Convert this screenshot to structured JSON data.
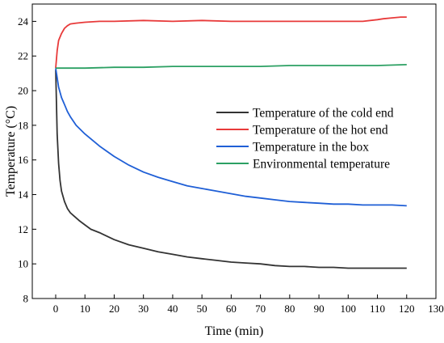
{
  "chart_data": {
    "type": "line",
    "xlabel": "Time (min)",
    "ylabel": "Temperature (°C)",
    "xlim": [
      -8,
      130
    ],
    "ylim": [
      8,
      25
    ],
    "xticks": [
      0,
      10,
      20,
      30,
      40,
      50,
      60,
      70,
      80,
      90,
      100,
      110,
      120,
      130
    ],
    "yticks": [
      8,
      10,
      12,
      14,
      16,
      18,
      20,
      22,
      24
    ],
    "grid": false,
    "legend_position": "center-right",
    "series": [
      {
        "name": "Temperature of the cold end",
        "color": "#333333",
        "x": [
          0,
          0.5,
          1,
          1.5,
          2,
          3,
          4,
          5,
          6,
          8,
          10,
          12,
          15,
          20,
          25,
          30,
          35,
          40,
          45,
          50,
          55,
          60,
          65,
          70,
          75,
          80,
          85,
          90,
          95,
          100,
          105,
          110,
          115,
          120
        ],
        "y": [
          21.2,
          17.5,
          15.8,
          14.8,
          14.2,
          13.6,
          13.2,
          12.95,
          12.8,
          12.5,
          12.25,
          12.0,
          11.8,
          11.4,
          11.1,
          10.9,
          10.7,
          10.55,
          10.4,
          10.3,
          10.2,
          10.1,
          10.05,
          10.0,
          9.9,
          9.85,
          9.85,
          9.8,
          9.8,
          9.75,
          9.75,
          9.75,
          9.75,
          9.75
        ]
      },
      {
        "name": "Temperature of the hot end",
        "color": "#e83a3a",
        "x": [
          0,
          0.5,
          1,
          2,
          3,
          4,
          5,
          7,
          10,
          15,
          20,
          30,
          40,
          50,
          60,
          70,
          80,
          90,
          100,
          105,
          110,
          112,
          115,
          118,
          120
        ],
        "y": [
          21.3,
          22.3,
          22.9,
          23.3,
          23.6,
          23.75,
          23.85,
          23.9,
          23.95,
          24.0,
          24.0,
          24.05,
          24.0,
          24.05,
          24.0,
          24.0,
          24.0,
          24.0,
          24.0,
          24.0,
          24.1,
          24.15,
          24.2,
          24.25,
          24.25
        ]
      },
      {
        "name": "Temperature in the box",
        "color": "#1f5fd6",
        "x": [
          0,
          1,
          2,
          3,
          4,
          5,
          7,
          10,
          15,
          20,
          25,
          30,
          35,
          40,
          45,
          50,
          55,
          60,
          65,
          70,
          75,
          80,
          85,
          90,
          95,
          100,
          105,
          110,
          115,
          120
        ],
        "y": [
          21.3,
          20.2,
          19.6,
          19.2,
          18.8,
          18.5,
          18.0,
          17.5,
          16.8,
          16.2,
          15.7,
          15.3,
          15.0,
          14.75,
          14.5,
          14.35,
          14.2,
          14.05,
          13.9,
          13.8,
          13.7,
          13.6,
          13.55,
          13.5,
          13.45,
          13.45,
          13.4,
          13.4,
          13.4,
          13.35
        ]
      },
      {
        "name": "Environmental temperature",
        "color": "#2ca063",
        "x": [
          0,
          10,
          20,
          30,
          40,
          50,
          60,
          70,
          80,
          90,
          100,
          110,
          120
        ],
        "y": [
          21.3,
          21.3,
          21.35,
          21.35,
          21.4,
          21.4,
          21.4,
          21.4,
          21.45,
          21.45,
          21.45,
          21.45,
          21.5
        ]
      }
    ]
  }
}
